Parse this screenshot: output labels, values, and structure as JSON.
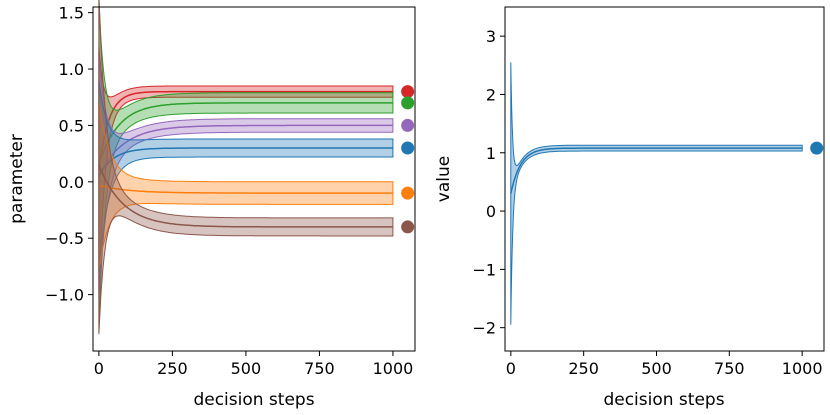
{
  "chart_data": [
    {
      "type": "line",
      "xlabel": "decision steps",
      "ylabel": "parameter",
      "xlim": [
        -20,
        1075
      ],
      "ylim": [
        -1.5,
        1.55
      ],
      "xticks": [
        0,
        250,
        500,
        750,
        1000
      ],
      "yticks": [
        -1.0,
        -0.5,
        0.0,
        0.5,
        1.0,
        1.5
      ],
      "ytick_labels": [
        "−1.0",
        "−0.5",
        "0.0",
        "0.5",
        "1.0",
        "1.5"
      ],
      "legend": "none",
      "grid": false,
      "series": [
        {
          "name": "red",
          "color": "#d62728",
          "start": 0.1,
          "target": 0.8,
          "rate": 0.03,
          "band": [
            1.05,
            0.05
          ],
          "band_scale": 18,
          "band_start": 1.1,
          "marker_y": 0.8
        },
        {
          "name": "green",
          "color": "#2ca02c",
          "start": 0.15,
          "target": 0.7,
          "rate": 0.015,
          "band": [
            1.35,
            0.09
          ],
          "band_scale": 20,
          "band_start": 1.48,
          "marker_y": 0.7
        },
        {
          "name": "purple",
          "color": "#9467bd",
          "start": 0.05,
          "target": 0.5,
          "rate": 0.012,
          "band": [
            1.0,
            0.06
          ],
          "band_scale": 25,
          "band_start": 1.1,
          "marker_y": 0.5
        },
        {
          "name": "blue",
          "color": "#1f77b4",
          "start": 0.05,
          "target": 0.3,
          "rate": 0.02,
          "band": [
            0.8,
            0.08
          ],
          "band_scale": 30,
          "band_start": 0.85,
          "marker_y": 0.3
        },
        {
          "name": "orange",
          "color": "#ff7f0e",
          "start": -0.03,
          "target": -0.1,
          "rate": 0.01,
          "band": [
            0.8,
            0.1
          ],
          "band_scale": 35,
          "band_start": 0.75,
          "marker_y": -0.1
        },
        {
          "name": "brown",
          "color": "#8c564b",
          "start": 0.15,
          "target": -0.4,
          "rate": 0.012,
          "band": [
            1.4,
            0.08
          ],
          "band_scale": 22,
          "band_start": 1.5,
          "marker_y": -0.4
        }
      ],
      "x_end": 1000,
      "marker_x": 1050
    },
    {
      "type": "line",
      "xlabel": "decision steps",
      "ylabel": "value",
      "xlim": [
        -20,
        1075
      ],
      "ylim": [
        -2.4,
        3.5
      ],
      "xticks": [
        0,
        250,
        500,
        750,
        1000
      ],
      "yticks": [
        -2,
        -1,
        0,
        1,
        2,
        3
      ],
      "ytick_labels": [
        "−2",
        "−1",
        "0",
        "1",
        "2",
        "3"
      ],
      "legend": "none",
      "grid": false,
      "series": [
        {
          "name": "value",
          "color": "#1f77b4",
          "start": 0.3,
          "target": 1.08,
          "rate": 0.03,
          "band": [
            3.3,
            0.05
          ],
          "band_scale": 6,
          "band_start": 2.25,
          "marker_y": 1.08
        }
      ],
      "x_end": 1000,
      "marker_x": 1050
    }
  ]
}
